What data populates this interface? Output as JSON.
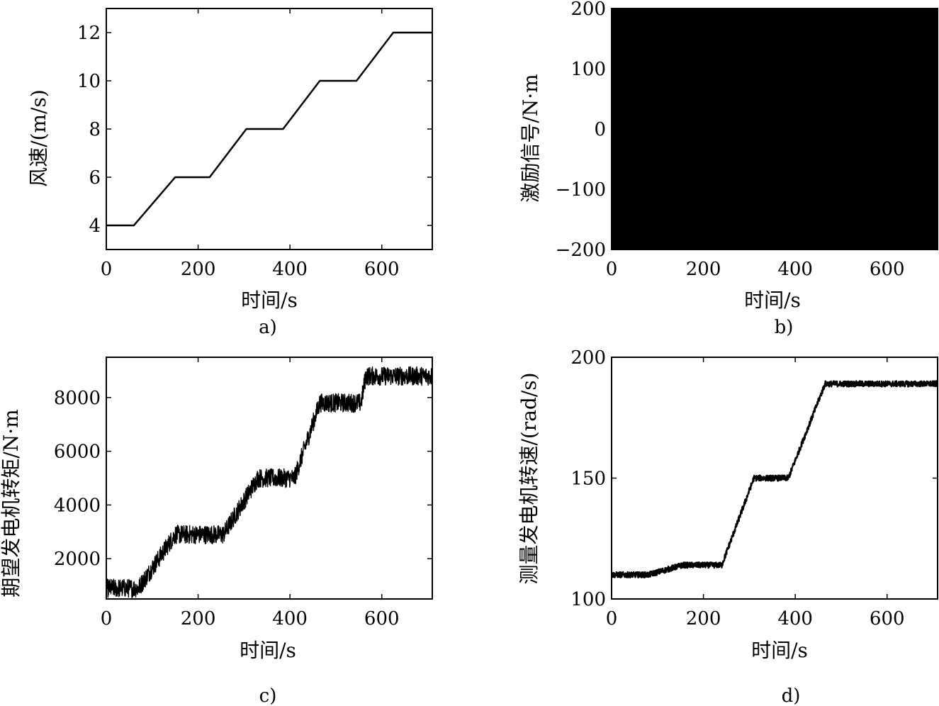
{
  "chart_data": [
    {
      "type": "line",
      "panel": "a)",
      "xlabel": "时间/s",
      "ylabel": "风速/(m/s)",
      "xlim": [
        0,
        710
      ],
      "ylim": [
        3,
        13
      ],
      "xticks": [
        0,
        200,
        400,
        600
      ],
      "yticks": [
        4,
        6,
        8,
        10,
        12
      ],
      "series": [
        {
          "x": [
            0,
            60,
            150,
            225,
            305,
            385,
            465,
            545,
            625,
            710
          ],
          "y": [
            4,
            4,
            6,
            6,
            8,
            8,
            10,
            10,
            12,
            12
          ]
        }
      ]
    },
    {
      "type": "line",
      "panel": "b)",
      "xlabel": "时间/s",
      "ylabel": "激励信号/N·m",
      "xlim": [
        0,
        710
      ],
      "ylim": [
        -200,
        200
      ],
      "xticks": [
        0,
        200,
        400,
        600
      ],
      "yticks": [
        -200,
        -100,
        0,
        100,
        200
      ],
      "series": [
        {
          "pattern": "pseudo-random binary switching",
          "levels": [
            -200,
            200
          ],
          "x_range": [
            0,
            710
          ]
        }
      ]
    },
    {
      "type": "line",
      "panel": "c)",
      "xlabel": "时间/s",
      "ylabel": "期望发电机转矩/N·m",
      "xlim": [
        0,
        710
      ],
      "ylim": [
        500,
        9500
      ],
      "xticks": [
        0,
        200,
        400,
        600
      ],
      "yticks": [
        2000,
        4000,
        6000,
        8000
      ],
      "series": [
        {
          "x": [
            0,
            70,
            150,
            255,
            330,
            410,
            465,
            555,
            565,
            710
          ],
          "y": [
            900,
            900,
            2900,
            2900,
            5000,
            5000,
            7800,
            7800,
            8800,
            8800
          ],
          "noise_amplitude": 350
        }
      ]
    },
    {
      "type": "line",
      "panel": "d)",
      "xlabel": "时间/s",
      "ylabel": "测量发电机转速/(rad/s)",
      "xlim": [
        0,
        710
      ],
      "ylim": [
        100,
        200
      ],
      "xticks": [
        0,
        200,
        400,
        600
      ],
      "yticks": [
        100,
        150,
        200
      ],
      "series": [
        {
          "x": [
            0,
            80,
            155,
            240,
            310,
            385,
            465,
            710
          ],
          "y": [
            110,
            110,
            114,
            114,
            150,
            150,
            189,
            189
          ],
          "noise_amplitude": 1.2
        }
      ]
    }
  ]
}
